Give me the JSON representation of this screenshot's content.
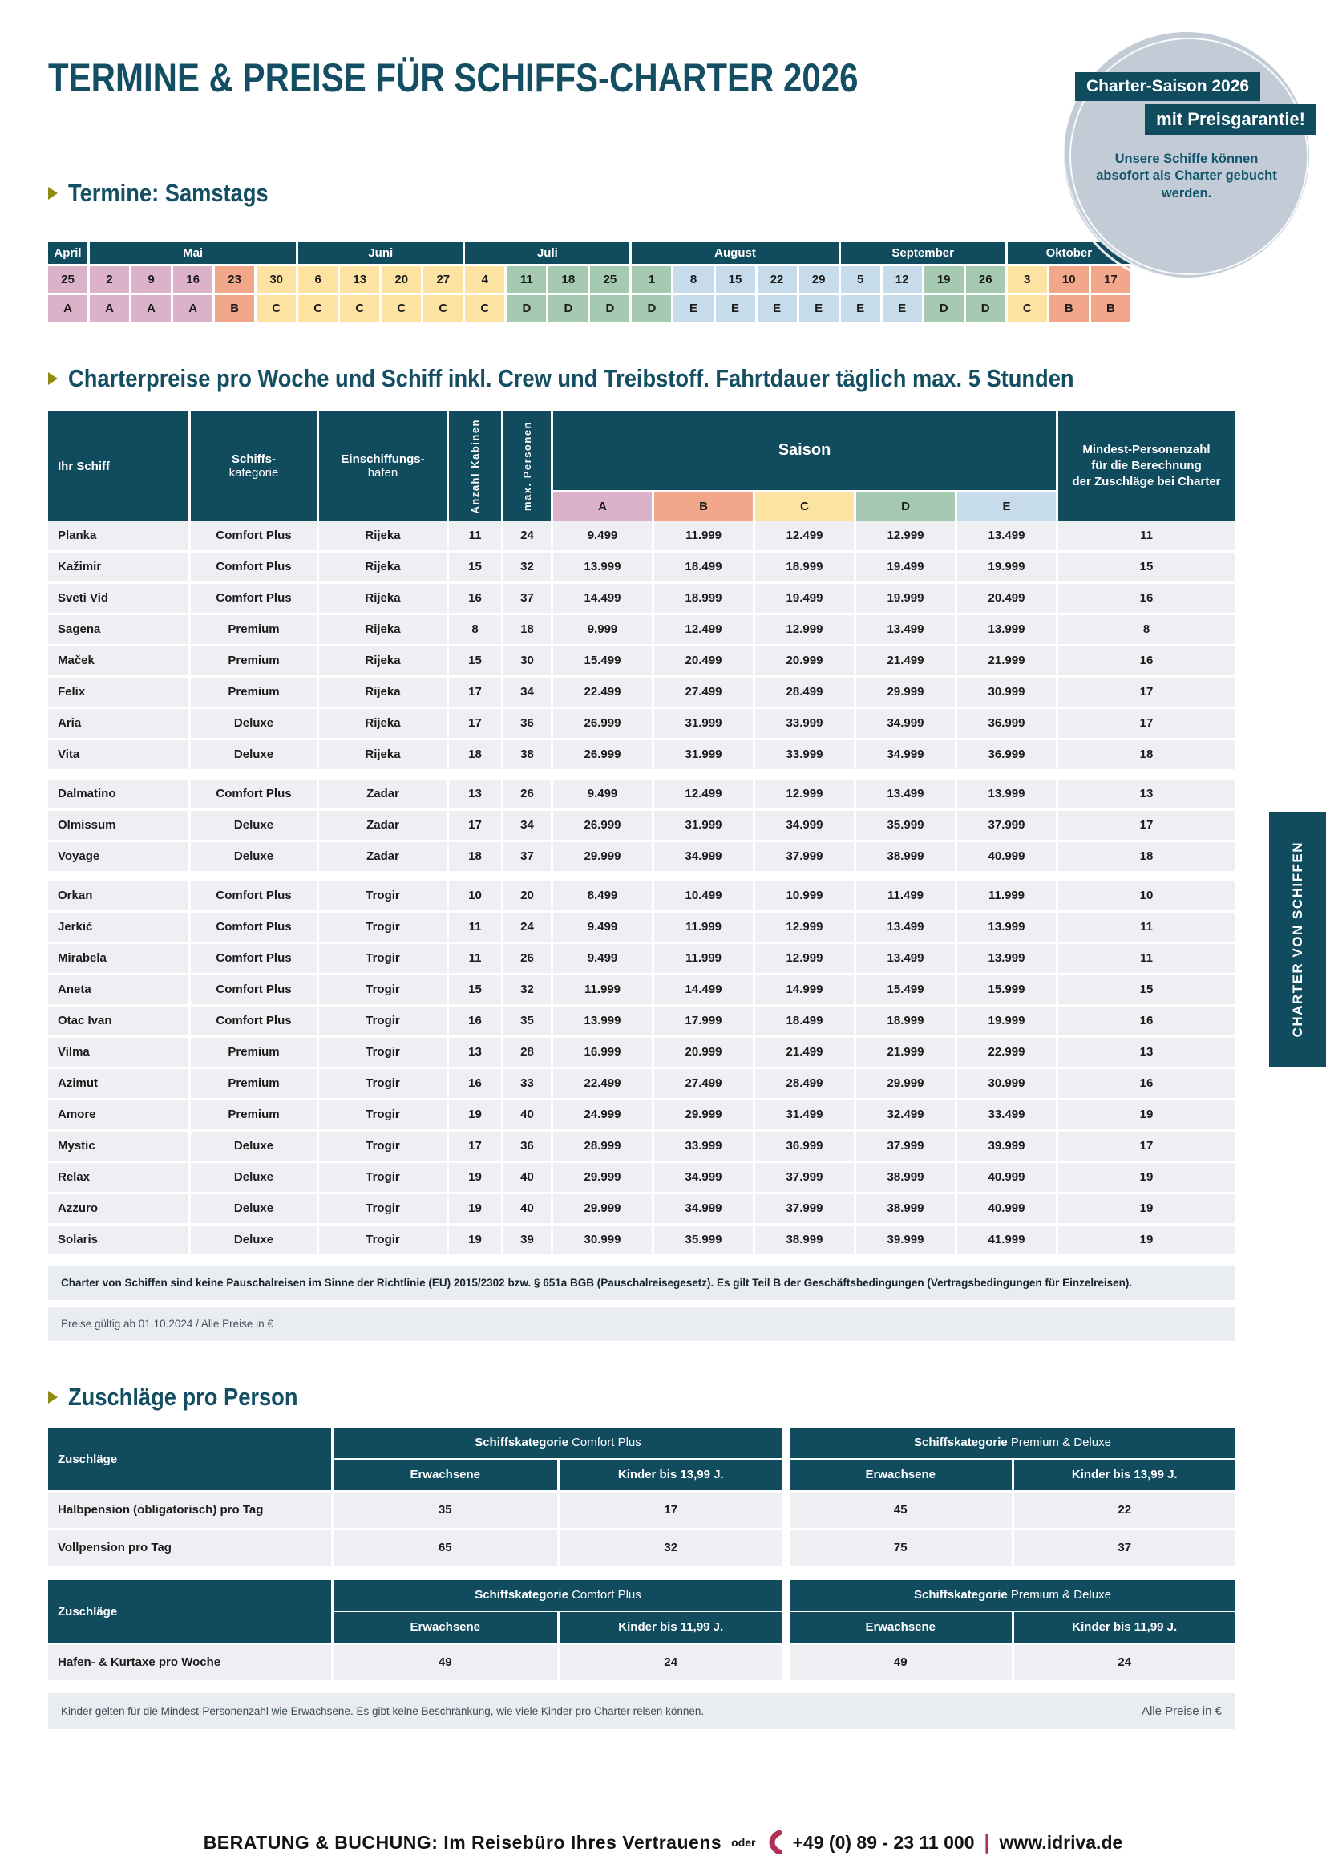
{
  "theme": {
    "teal": "#114b5e",
    "heading": "#134e63",
    "row_bg": "#edeff3",
    "band_bg": "#e9edf2",
    "badge_circle": "#c3ccd6",
    "arrow_olive": "#8e8c15",
    "accent_red": "#b13056"
  },
  "season_colors": {
    "A": "#dcb2cb",
    "B": "#f2a78b",
    "C": "#fce3a1",
    "D": "#a5c9b1",
    "E": "#c6dcea"
  },
  "page": {
    "title": "TERMINE & PREISE FÜR SCHIFFS-CHARTER 2026",
    "side_tab": "CHARTER VON SCHIFFEN"
  },
  "badge": {
    "line1": "Charter-Saison 2026",
    "line2": "mit Preisgarantie!",
    "text": "Unsere Schiffe können\nabsofort als Charter gebucht\nwerden."
  },
  "sections": {
    "termine": "Termine: Samstags",
    "charterpreise": "Charterpreise pro Woche und Schiff inkl. Crew und Treibstoff. Fahrtdauer täglich max. 5 Stunden",
    "zuschlaege": "Zuschläge pro Person"
  },
  "calendar": {
    "months": [
      {
        "name": "April",
        "span": 1
      },
      {
        "name": "Mai",
        "span": 5
      },
      {
        "name": "Juni",
        "span": 4
      },
      {
        "name": "Juli",
        "span": 4
      },
      {
        "name": "August",
        "span": 5
      },
      {
        "name": "September",
        "span": 4
      },
      {
        "name": "Oktober",
        "span": 3
      }
    ],
    "columns": [
      {
        "date": "25",
        "season": "A"
      },
      {
        "date": "2",
        "season": "A"
      },
      {
        "date": "9",
        "season": "A"
      },
      {
        "date": "16",
        "season": "A"
      },
      {
        "date": "23",
        "season": "B"
      },
      {
        "date": "30",
        "season": "C"
      },
      {
        "date": "6",
        "season": "C"
      },
      {
        "date": "13",
        "season": "C"
      },
      {
        "date": "20",
        "season": "C"
      },
      {
        "date": "27",
        "season": "C"
      },
      {
        "date": "4",
        "season": "C"
      },
      {
        "date": "11",
        "season": "D"
      },
      {
        "date": "18",
        "season": "D"
      },
      {
        "date": "25",
        "season": "D"
      },
      {
        "date": "1",
        "season": "D"
      },
      {
        "date": "8",
        "season": "E"
      },
      {
        "date": "15",
        "season": "E"
      },
      {
        "date": "22",
        "season": "E"
      },
      {
        "date": "29",
        "season": "E"
      },
      {
        "date": "5",
        "season": "E"
      },
      {
        "date": "12",
        "season": "E"
      },
      {
        "date": "19",
        "season": "D"
      },
      {
        "date": "26",
        "season": "D"
      },
      {
        "date": "3",
        "season": "C"
      },
      {
        "date": "10",
        "season": "B"
      },
      {
        "date": "17",
        "season": "B"
      }
    ]
  },
  "price_table": {
    "col_ship": "Ihr Schiff",
    "col_category_l1": "Schiffs-",
    "col_category_l2": "kategorie",
    "col_port_l1": "Einschiffungs-",
    "col_port_l2": "hafen",
    "col_cabins": "Anzahl Kabinen",
    "col_max_persons": "max. Personen",
    "col_season": "Saison",
    "season_labels": [
      "A",
      "B",
      "C",
      "D",
      "E"
    ],
    "col_min_persons": "Mindest-Personenzahl\nfür die Berechnung\nder Zuschläge bei Charter",
    "groups": [
      {
        "port": "Rijeka",
        "rows": [
          [
            "Planka",
            "Comfort Plus",
            "Rijeka",
            "11",
            "24",
            "9.499",
            "11.999",
            "12.499",
            "12.999",
            "13.499",
            "11"
          ],
          [
            "Kažimir",
            "Comfort Plus",
            "Rijeka",
            "15",
            "32",
            "13.999",
            "18.499",
            "18.999",
            "19.499",
            "19.999",
            "15"
          ],
          [
            "Sveti Vid",
            "Comfort Plus",
            "Rijeka",
            "16",
            "37",
            "14.499",
            "18.999",
            "19.499",
            "19.999",
            "20.499",
            "16"
          ],
          [
            "Sagena",
            "Premium",
            "Rijeka",
            "8",
            "18",
            "9.999",
            "12.499",
            "12.999",
            "13.499",
            "13.999",
            "8"
          ],
          [
            "Maček",
            "Premium",
            "Rijeka",
            "15",
            "30",
            "15.499",
            "20.499",
            "20.999",
            "21.499",
            "21.999",
            "16"
          ],
          [
            "Felix",
            "Premium",
            "Rijeka",
            "17",
            "34",
            "22.499",
            "27.499",
            "28.499",
            "29.999",
            "30.999",
            "17"
          ],
          [
            "Aria",
            "Deluxe",
            "Rijeka",
            "17",
            "36",
            "26.999",
            "31.999",
            "33.999",
            "34.999",
            "36.999",
            "17"
          ],
          [
            "Vita",
            "Deluxe",
            "Rijeka",
            "18",
            "38",
            "26.999",
            "31.999",
            "33.999",
            "34.999",
            "36.999",
            "18"
          ]
        ]
      },
      {
        "port": "Zadar",
        "rows": [
          [
            "Dalmatino",
            "Comfort Plus",
            "Zadar",
            "13",
            "26",
            "9.499",
            "12.499",
            "12.999",
            "13.499",
            "13.999",
            "13"
          ],
          [
            "Olmissum",
            "Deluxe",
            "Zadar",
            "17",
            "34",
            "26.999",
            "31.999",
            "34.999",
            "35.999",
            "37.999",
            "17"
          ],
          [
            "Voyage",
            "Deluxe",
            "Zadar",
            "18",
            "37",
            "29.999",
            "34.999",
            "37.999",
            "38.999",
            "40.999",
            "18"
          ]
        ]
      },
      {
        "port": "Trogir",
        "rows": [
          [
            "Orkan",
            "Comfort Plus",
            "Trogir",
            "10",
            "20",
            "8.499",
            "10.499",
            "10.999",
            "11.499",
            "11.999",
            "10"
          ],
          [
            "Jerkić",
            "Comfort Plus",
            "Trogir",
            "11",
            "24",
            "9.499",
            "11.999",
            "12.999",
            "13.499",
            "13.999",
            "11"
          ],
          [
            "Mirabela",
            "Comfort Plus",
            "Trogir",
            "11",
            "26",
            "9.499",
            "11.999",
            "12.999",
            "13.499",
            "13.999",
            "11"
          ],
          [
            "Aneta",
            "Comfort Plus",
            "Trogir",
            "15",
            "32",
            "11.999",
            "14.499",
            "14.999",
            "15.499",
            "15.999",
            "15"
          ],
          [
            "Otac Ivan",
            "Comfort Plus",
            "Trogir",
            "16",
            "35",
            "13.999",
            "17.999",
            "18.499",
            "18.999",
            "19.999",
            "16"
          ],
          [
            "Vilma",
            "Premium",
            "Trogir",
            "13",
            "28",
            "16.999",
            "20.999",
            "21.499",
            "21.999",
            "22.999",
            "13"
          ],
          [
            "Azimut",
            "Premium",
            "Trogir",
            "16",
            "33",
            "22.499",
            "27.499",
            "28.499",
            "29.999",
            "30.999",
            "16"
          ],
          [
            "Amore",
            "Premium",
            "Trogir",
            "19",
            "40",
            "24.999",
            "29.999",
            "31.499",
            "32.499",
            "33.499",
            "19"
          ],
          [
            "Mystic",
            "Deluxe",
            "Trogir",
            "17",
            "36",
            "28.999",
            "33.999",
            "36.999",
            "37.999",
            "39.999",
            "17"
          ],
          [
            "Relax",
            "Deluxe",
            "Trogir",
            "19",
            "40",
            "29.999",
            "34.999",
            "37.999",
            "38.999",
            "40.999",
            "19"
          ],
          [
            "Azzuro",
            "Deluxe",
            "Trogir",
            "19",
            "40",
            "29.999",
            "34.999",
            "37.999",
            "38.999",
            "40.999",
            "19"
          ],
          [
            "Solaris",
            "Deluxe",
            "Trogir",
            "19",
            "39",
            "30.999",
            "35.999",
            "38.999",
            "39.999",
            "41.999",
            "19"
          ]
        ]
      }
    ]
  },
  "notes": {
    "legal": "Charter von Schiffen sind keine Pauschalreisen im Sinne der Richtlinie (EU) 2015/2302 bzw. § 651a BGB (Pauschalreisegesetz). Es gilt Teil B der Geschäftsbedingungen (Vertragsbedingungen für Einzelreisen).",
    "validity": "Preise gültig ab 01.10.2024 / Alle Preise in €",
    "children": "Kinder gelten für die Mindest-Personenzahl wie Erwachsene. Es gibt keine Beschränkung, wie viele Kinder pro Charter reisen können.",
    "all_prices": "Alle Preise in €"
  },
  "surcharges": {
    "row_label_header": "Zuschläge",
    "category_bold": "Schiffskategorie",
    "sets": [
      {
        "left": {
          "category": "Comfort Plus",
          "cols": [
            "Erwachsene",
            "Kinder bis 13,99 J."
          ],
          "rows": [
            {
              "label": "Halbpension (obligatorisch) pro Tag",
              "adult": "35",
              "child": "17"
            },
            {
              "label": "Vollpension pro Tag",
              "adult": "65",
              "child": "32"
            }
          ]
        },
        "right": {
          "category": "Premium & Deluxe",
          "cols": [
            "Erwachsene",
            "Kinder bis 13,99 J."
          ],
          "rows": [
            {
              "adult": "45",
              "child": "22"
            },
            {
              "adult": "75",
              "child": "37"
            }
          ]
        }
      },
      {
        "left": {
          "category": "Comfort Plus",
          "cols": [
            "Erwachsene",
            "Kinder bis 11,99 J."
          ],
          "rows": [
            {
              "label": "Hafen- & Kurtaxe pro Woche",
              "adult": "49",
              "child": "24"
            }
          ]
        },
        "right": {
          "category": "Premium & Deluxe",
          "cols": [
            "Erwachsene",
            "Kinder bis 11,99 J."
          ],
          "rows": [
            {
              "adult": "49",
              "child": "24"
            }
          ]
        }
      }
    ]
  },
  "footer": {
    "main": "BERATUNG & BUCHUNG: Im Reisebüro Ihres Vertrauens",
    "oder": "oder",
    "phone": "+49 (0) 89 - 23 11 000",
    "separator": "|",
    "site": "www.idriva.de"
  }
}
